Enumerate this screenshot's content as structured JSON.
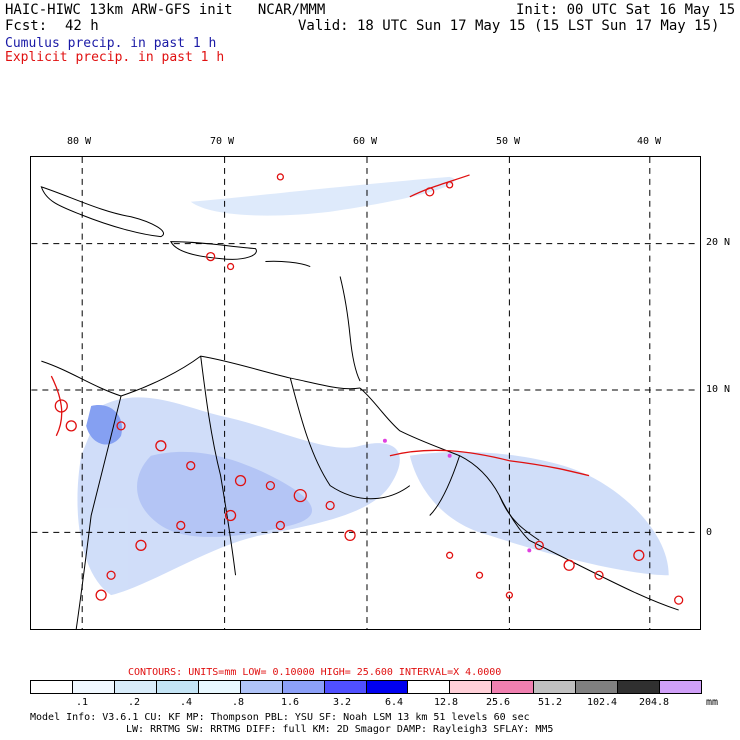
{
  "header": {
    "title_left": "HAIC-HIWC 13km ARW-GFS init   NCAR/MMM",
    "init": "Init: 00 UTC Sat 16 May 15",
    "fcst_label": "Fcst:",
    "fcst_value": "42 h",
    "valid": "Valid: 18 UTC Sun 17 May 15 (15 LST Sun 17 May 15)",
    "cumulus": "Cumulus precip. in past 1 h",
    "explicit": "Explicit precip. in past 1 h"
  },
  "map": {
    "lon_labels": [
      "80 W",
      "70 W",
      "60 W",
      "50 W",
      "40 W"
    ],
    "lat_labels": [
      "20 N",
      "10 N",
      "0"
    ],
    "colors": {
      "coast": "#000000",
      "grid": "#000000",
      "explicit_contour": "#e01010",
      "cumulus_fill": "#c8d8f8",
      "cumulus_heavy": "#7090f0",
      "magenta": "#e040e0"
    }
  },
  "contours": {
    "text": "CONTOURS:  UNITS=mm  LOW= 0.10000     HIGH=  25.600     INTERVAL=X  4.0000"
  },
  "colorbar": {
    "colors": [
      "#ffffff",
      "#f0f8ff",
      "#d8ecfa",
      "#c4e4f5",
      "#e8f8ff",
      "#b0c4f8",
      "#8ca0f8",
      "#5050ff",
      "#0000f0",
      "#ffffff",
      "#ffd0d8",
      "#f080b0",
      "#c0c0c0",
      "#808080",
      "#303030",
      "#d0a0f8"
    ],
    "labels": [
      ".1",
      ".2",
      ".4",
      ".8",
      "1.6",
      "3.2",
      "6.4",
      "12.8",
      "25.6",
      "51.2",
      "102.4",
      "204.8"
    ],
    "unit": "mm"
  },
  "model_info": {
    "line1": "Model Info: V3.6.1     CU: KF      MP: Thompson     PBL: YSU      SF: Noah LSM     13 km    51 levels   60 sec",
    "line2": "LW: RRTMG    SW: RRTMG   DIFF: full    KM: 2D Smagor DAMP: Rayleigh3   SFLAY: MM5"
  }
}
